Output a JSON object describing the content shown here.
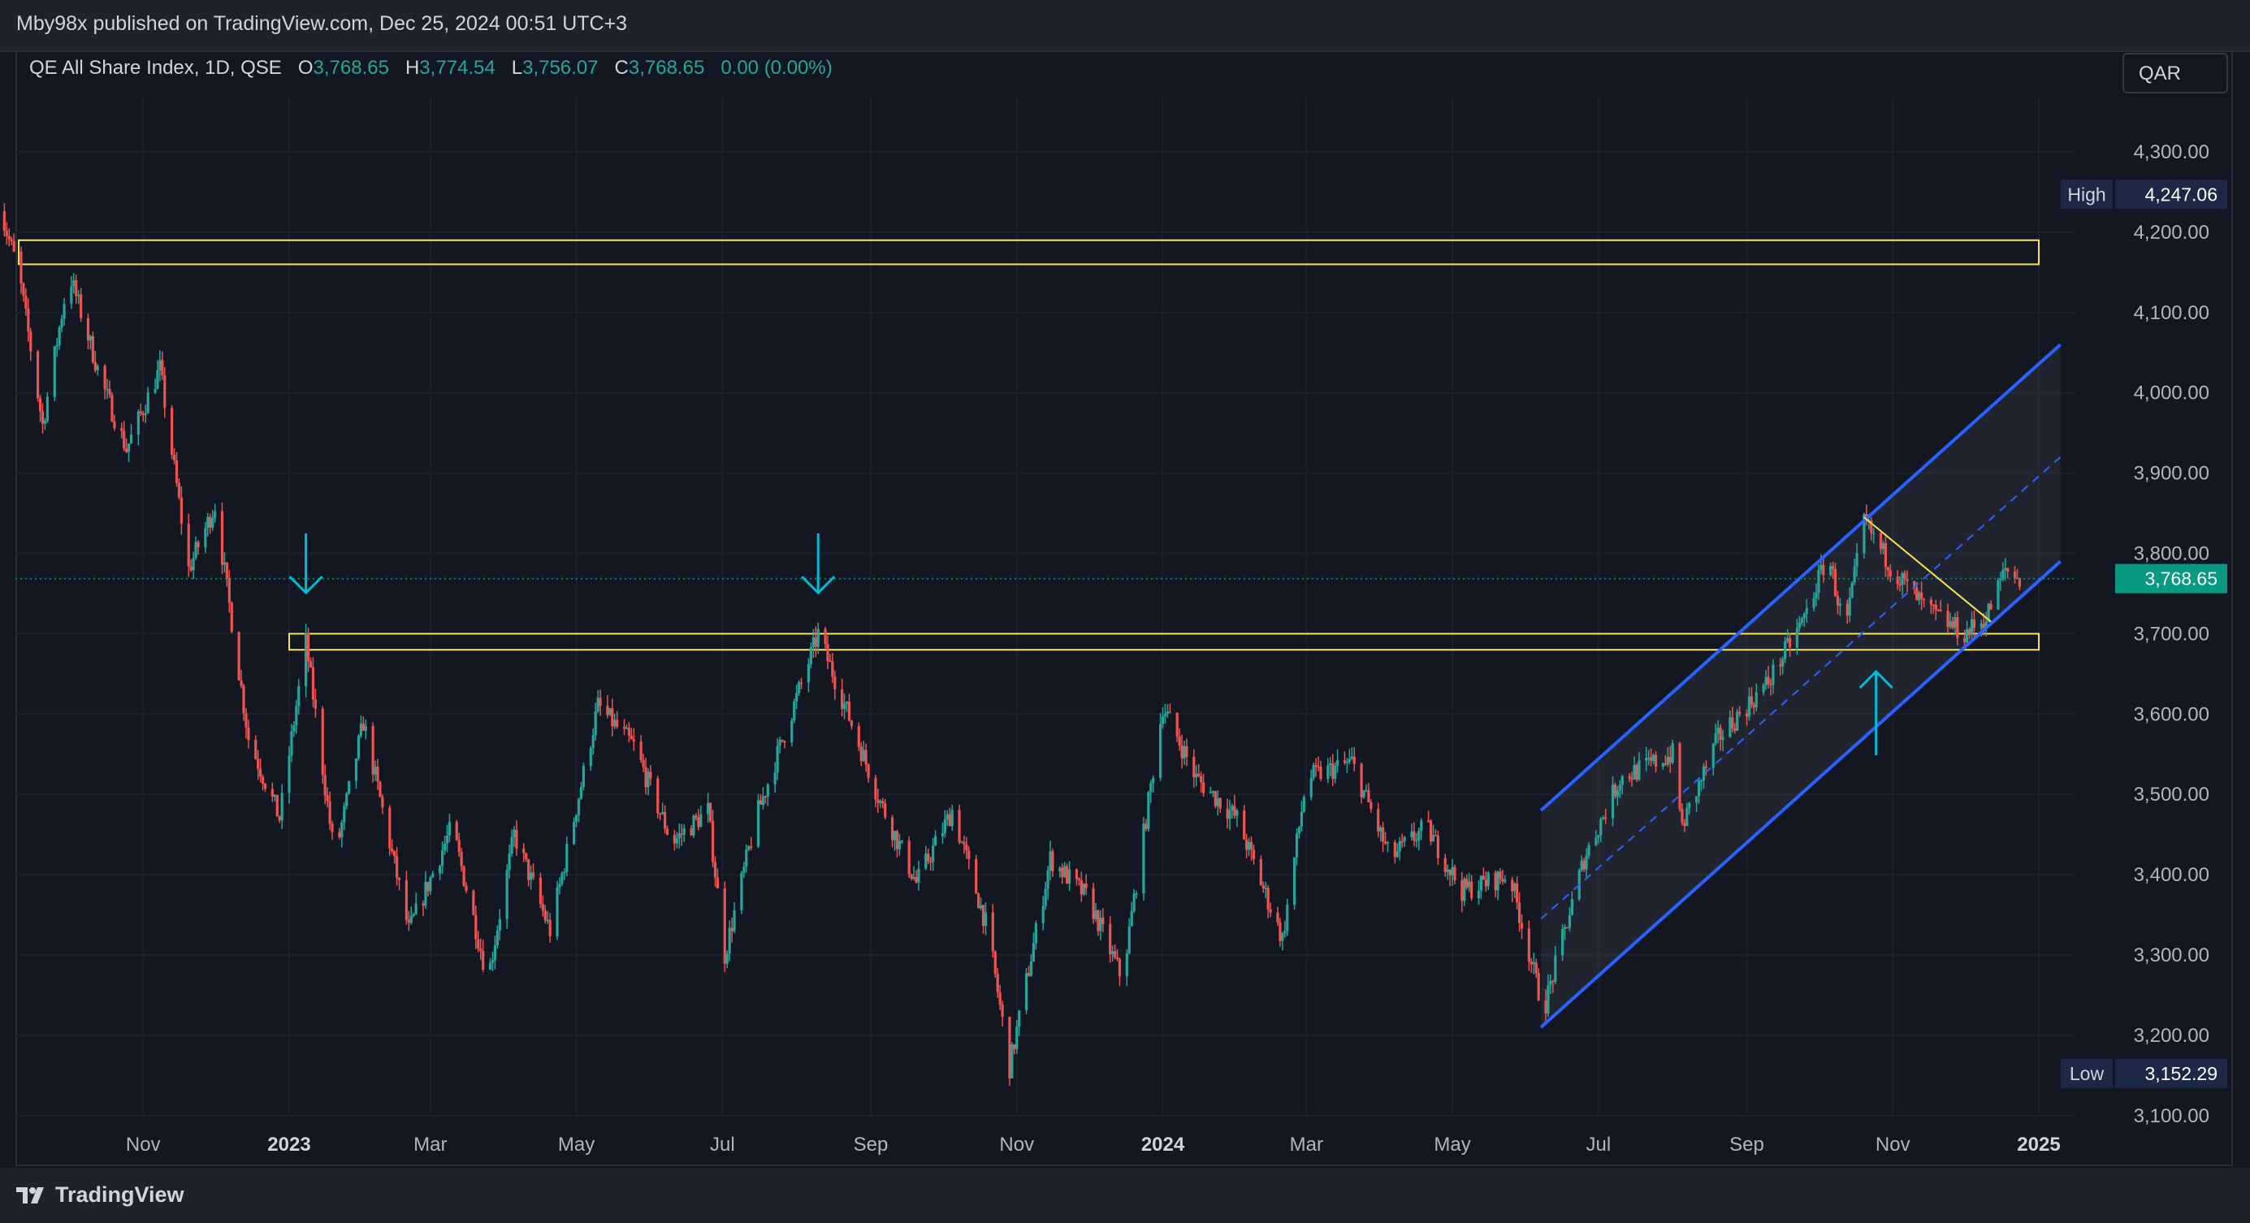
{
  "header": {
    "publish_text": "Mby98x published on TradingView.com, Dec 25, 2024 00:51 UTC+3"
  },
  "legend": {
    "symbol": "QE All Share Index, 1D, QSE",
    "o_label": "O",
    "o_value": "3,768.65",
    "h_label": "H",
    "h_value": "3,774.54",
    "l_label": "L",
    "l_value": "3,756.07",
    "c_label": "C",
    "c_value": "3,768.65",
    "change": "0.00 (0.00%)"
  },
  "currency": "QAR",
  "footer": {
    "brand": "TradingView"
  },
  "colors": {
    "background": "#131722",
    "up": "#26a69a",
    "down": "#ef5350",
    "channel": "#2962ff",
    "zone": "#f7e354",
    "arrow": "#00bcd4",
    "last_price": "#089981"
  },
  "chart_data": {
    "type": "candlestick",
    "x_axis_labels": [
      {
        "label": "Nov",
        "date": "2022-11-01"
      },
      {
        "label": "2023",
        "date": "2023-01-01",
        "bold": true
      },
      {
        "label": "Mar",
        "date": "2023-03-01"
      },
      {
        "label": "May",
        "date": "2023-05-01"
      },
      {
        "label": "Jul",
        "date": "2023-07-01"
      },
      {
        "label": "Sep",
        "date": "2023-09-01"
      },
      {
        "label": "Nov",
        "date": "2023-11-01"
      },
      {
        "label": "2024",
        "date": "2024-01-01",
        "bold": true
      },
      {
        "label": "Mar",
        "date": "2024-03-01"
      },
      {
        "label": "May",
        "date": "2024-05-01"
      },
      {
        "label": "Jul",
        "date": "2024-07-01"
      },
      {
        "label": "Sep",
        "date": "2024-09-01"
      },
      {
        "label": "Nov",
        "date": "2024-11-01"
      },
      {
        "label": "2025",
        "date": "2025-01-01",
        "bold": true
      }
    ],
    "y_axis_labels": [
      "4,300.00",
      "4,200.00",
      "4,100.00",
      "4,000.00",
      "3,900.00",
      "3,800.00",
      "3,700.00",
      "3,600.00",
      "3,500.00",
      "3,400.00",
      "3,300.00",
      "3,200.00",
      "3,100.00"
    ],
    "y_axis_values": [
      4300,
      4200,
      4100,
      4000,
      3900,
      3800,
      3700,
      3600,
      3500,
      3400,
      3300,
      3200,
      3100
    ],
    "ylim": [
      3100,
      4350
    ],
    "high": {
      "label": "High",
      "value": 4247.06,
      "text": "4,247.06"
    },
    "low": {
      "label": "Low",
      "value": 3152.29,
      "text": "3,152.29"
    },
    "last_price": {
      "value": 3768.65,
      "text": "3,768.65"
    },
    "price_path": [
      [
        "2022-09-01",
        4240
      ],
      [
        "2022-09-10",
        4150
      ],
      [
        "2022-09-20",
        3960
      ],
      [
        "2022-10-01",
        4150
      ],
      [
        "2022-10-15",
        4010
      ],
      [
        "2022-10-25",
        3930
      ],
      [
        "2022-11-08",
        4030
      ],
      [
        "2022-11-20",
        3780
      ],
      [
        "2022-12-01",
        3860
      ],
      [
        "2022-12-15",
        3570
      ],
      [
        "2022-12-28",
        3470
      ],
      [
        "2023-01-08",
        3690
      ],
      [
        "2023-01-20",
        3420
      ],
      [
        "2023-02-01",
        3590
      ],
      [
        "2023-02-20",
        3330
      ],
      [
        "2023-03-10",
        3460
      ],
      [
        "2023-03-25",
        3270
      ],
      [
        "2023-04-05",
        3450
      ],
      [
        "2023-04-20",
        3330
      ],
      [
        "2023-05-10",
        3610
      ],
      [
        "2023-05-25",
        3560
      ],
      [
        "2023-06-10",
        3440
      ],
      [
        "2023-06-25",
        3480
      ],
      [
        "2023-07-02",
        3300
      ],
      [
        "2023-07-15",
        3470
      ],
      [
        "2023-08-10",
        3700
      ],
      [
        "2023-08-20",
        3620
      ],
      [
        "2023-09-05",
        3490
      ],
      [
        "2023-09-20",
        3390
      ],
      [
        "2023-10-05",
        3480
      ],
      [
        "2023-10-20",
        3330
      ],
      [
        "2023-10-29",
        3160
      ],
      [
        "2023-11-15",
        3420
      ],
      [
        "2023-12-01",
        3370
      ],
      [
        "2023-12-15",
        3270
      ],
      [
        "2024-01-01",
        3610
      ],
      [
        "2024-01-15",
        3520
      ],
      [
        "2024-02-01",
        3470
      ],
      [
        "2024-02-20",
        3320
      ],
      [
        "2024-03-01",
        3520
      ],
      [
        "2024-03-20",
        3540
      ],
      [
        "2024-04-05",
        3420
      ],
      [
        "2024-04-20",
        3460
      ],
      [
        "2024-05-05",
        3380
      ],
      [
        "2024-05-25",
        3400
      ],
      [
        "2024-06-08",
        3230
      ],
      [
        "2024-06-25",
        3420
      ],
      [
        "2024-07-10",
        3520
      ],
      [
        "2024-08-01",
        3550
      ],
      [
        "2024-08-05",
        3460
      ],
      [
        "2024-08-20",
        3570
      ],
      [
        "2024-09-10",
        3640
      ],
      [
        "2024-09-25",
        3720
      ],
      [
        "2024-10-05",
        3800
      ],
      [
        "2024-10-12",
        3700
      ],
      [
        "2024-10-20",
        3840
      ],
      [
        "2024-11-01",
        3780
      ],
      [
        "2024-11-15",
        3730
      ],
      [
        "2024-12-01",
        3700
      ],
      [
        "2024-12-10",
        3720
      ],
      [
        "2024-12-18",
        3780
      ],
      [
        "2024-12-24",
        3768
      ]
    ],
    "annotations": {
      "resistance_zone_upper": {
        "from": "2022-09-10",
        "to": "2025-01-01",
        "top": 4190,
        "bottom": 4160
      },
      "support_zone": {
        "from": "2023-01-01",
        "to": "2025-01-01",
        "top": 3700,
        "bottom": 3680
      },
      "channel_upper": {
        "from": [
          "2024-06-07",
          3480
        ],
        "to": [
          "2025-01-10",
          4060
        ]
      },
      "channel_mid": {
        "from": [
          "2024-06-07",
          3345
        ],
        "to": [
          "2025-01-10",
          3920
        ]
      },
      "channel_lower": {
        "from": [
          "2024-06-07",
          3210
        ],
        "to": [
          "2025-01-10",
          3790
        ]
      },
      "triangle_top": {
        "from": [
          "2024-10-20",
          3845
        ],
        "to": [
          "2024-12-12",
          3715
        ]
      },
      "down_arrows": [
        "2023-01-08",
        "2023-08-10"
      ],
      "up_arrow": "2024-10-25"
    }
  }
}
